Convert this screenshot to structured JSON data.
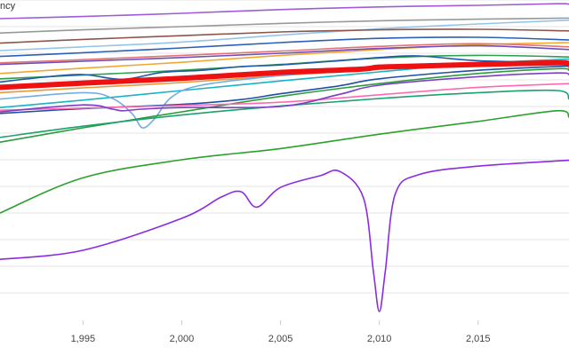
{
  "chart_data": {
    "type": "line",
    "ylabel": "ncy",
    "xlim": [
      1990.8,
      2019.6
    ],
    "ylim": [
      40,
      100
    ],
    "x_ticks": [
      1995,
      2000,
      2005,
      2010,
      2015
    ],
    "x_tick_labels": [
      "1,995",
      "2,000",
      "2,005",
      "2,010",
      "2,015"
    ],
    "grid": {
      "horizontal": true,
      "vertical": false
    },
    "legend": "none",
    "series": [
      {
        "color": "#ee1111",
        "highlight": true,
        "x": [
          1990.8,
          1995,
          2000,
          2005,
          2009,
          2010,
          2012,
          2015,
          2019,
          2019.6
        ],
        "y": [
          83.6,
          84.4,
          85.3,
          86.4,
          87.0,
          87.4,
          87.6,
          87.9,
          88.2,
          88.0
        ]
      },
      {
        "color": "#a05cd6",
        "x": [
          1990.8,
          1995,
          2000,
          2005,
          2010,
          2015,
          2019,
          2019.6
        ],
        "y": [
          96.5,
          96.9,
          97.5,
          98.2,
          98.7,
          99.0,
          99.3,
          99.2
        ]
      },
      {
        "color": "#999999",
        "x": [
          1990.8,
          1995,
          2000,
          2005,
          2010,
          2015,
          2019.6
        ],
        "y": [
          93.8,
          94.4,
          95.0,
          95.6,
          96.1,
          96.4,
          96.6
        ]
      },
      {
        "color": "#92c5e8",
        "x": [
          1990.8,
          1995,
          2000,
          2005,
          2010,
          2015,
          2019.6
        ],
        "y": [
          90.5,
          91.2,
          92.1,
          93.4,
          94.6,
          95.5,
          96.2
        ]
      },
      {
        "color": "#8c564b",
        "x": [
          1990.8,
          1995,
          2000,
          2005,
          2010,
          2015,
          2019.6
        ],
        "y": [
          91.9,
          92.6,
          93.3,
          94.0,
          94.4,
          94.5,
          94.2
        ]
      },
      {
        "color": "#2b5fb8",
        "x": [
          1990.8,
          1995,
          2000,
          2005,
          2010,
          2015,
          2019.6
        ],
        "y": [
          89.4,
          90.1,
          91.0,
          92.0,
          92.8,
          93.0,
          92.5
        ]
      },
      {
        "color": "#f0a830",
        "x": [
          1990.8,
          1995,
          2000,
          2005,
          2010,
          2015,
          2019.6
        ],
        "y": [
          86.2,
          87.2,
          88.3,
          89.6,
          90.7,
          91.6,
          92.0
        ]
      },
      {
        "color": "#e57373",
        "x": [
          1990.8,
          1995,
          2000,
          2005,
          2010,
          2015,
          2019.6
        ],
        "y": [
          88.2,
          88.8,
          89.6,
          90.4,
          91.3,
          91.8,
          91.2
        ]
      },
      {
        "color": "#6b4fbf",
        "x": [
          1990.8,
          1995,
          2000,
          2005,
          2010,
          2015,
          2019.6
        ],
        "y": [
          87.9,
          88.5,
          89.2,
          90.0,
          90.9,
          91.4,
          90.7
        ]
      },
      {
        "color": "#2e9e4f",
        "x": [
          1990.8,
          1995,
          2000,
          2005,
          2010,
          2015,
          2019.6
        ],
        "y": [
          85.2,
          85.9,
          86.8,
          87.9,
          89.1,
          89.6,
          89.3
        ]
      },
      {
        "color": "#1f5aa6",
        "x": [
          1990.8,
          1993,
          1995,
          1997,
          1999,
          2001,
          2003,
          2005,
          2008,
          2010,
          2012,
          2015,
          2019.6
        ],
        "y": [
          84.6,
          85.5,
          86.0,
          85.1,
          86.4,
          86.8,
          87.5,
          87.8,
          88.6,
          89.2,
          89.5,
          88.6,
          88.3
        ]
      },
      {
        "color": "#e69a3a",
        "x": [
          1990.8,
          1995,
          2000,
          2005,
          2010,
          2015,
          2019,
          2019.6
        ],
        "y": [
          82.6,
          83.5,
          84.5,
          85.8,
          87.0,
          88.0,
          88.3,
          87.1
        ]
      },
      {
        "color": "#17b4c4",
        "x": [
          1990.8,
          1995,
          2000,
          2005,
          2010,
          2015,
          2019.6
        ],
        "y": [
          79.8,
          81.2,
          83.0,
          84.8,
          86.5,
          88.1,
          88.9
        ]
      },
      {
        "color": "#74aee0",
        "x": [
          1990.8,
          1995,
          1996.5,
          1997.5,
          1998,
          1998.6,
          1999.5,
          2001,
          2005,
          2010,
          2015,
          2019.6
        ],
        "y": [
          81.4,
          82.6,
          81.5,
          78.6,
          76.0,
          77.6,
          81.8,
          84.0,
          85.8,
          87.2,
          88.0,
          88.4
        ]
      },
      {
        "color": "#1f4ea3",
        "x": [
          1990.8,
          1995,
          2000,
          2003,
          2005,
          2008,
          2010,
          2015,
          2019.6
        ],
        "y": [
          78.7,
          79.6,
          80.4,
          81.3,
          82.4,
          83.9,
          85.2,
          86.8,
          87.6
        ]
      },
      {
        "color": "#2a9d3a",
        "x": [
          1990.8,
          1995,
          2000,
          2005,
          2010,
          2015,
          2019,
          2019.6
        ],
        "y": [
          73.3,
          76.0,
          79.0,
          81.9,
          84.3,
          86.2,
          87.1,
          86.8
        ]
      },
      {
        "color": "#ff69b4",
        "x": [
          1990.8,
          1995,
          2000,
          2005,
          2010,
          2015,
          2019.6
        ],
        "y": [
          79.3,
          79.7,
          80.2,
          80.8,
          82.2,
          83.6,
          84.3
        ]
      },
      {
        "color": "#1ca06e",
        "x": [
          1990.8,
          1995,
          2000,
          2005,
          2010,
          2015,
          2019,
          2019.6
        ],
        "y": [
          74.2,
          76.3,
          78.4,
          80.1,
          81.5,
          82.6,
          83.0,
          81.4
        ]
      },
      {
        "color": "#7c3fc4",
        "x": [
          1990.8,
          1995,
          1996.5,
          1997,
          1998,
          2000,
          2005,
          2008,
          2010,
          2015,
          2019,
          2019.6
        ],
        "y": [
          79.0,
          80.3,
          79.5,
          79.2,
          79.5,
          79.8,
          80.0,
          82.3,
          84.0,
          85.6,
          86.3,
          86.0
        ]
      },
      {
        "color": "#8a2be2",
        "x": [
          1990.8,
          1995,
          2000,
          2002,
          2003,
          2003.8,
          2005,
          2007,
          2008,
          2009.2,
          2009.7,
          2010.0,
          2010.3,
          2010.8,
          2012,
          2015,
          2019.6
        ],
        "y": [
          51.3,
          53.0,
          59.0,
          63.0,
          64.0,
          61.1,
          64.8,
          67.0,
          67.8,
          62.8,
          49.0,
          41.5,
          49.0,
          63.5,
          67.2,
          68.8,
          69.9
        ]
      },
      {
        "color": "#2ca02c",
        "x": [
          1990.8,
          1995,
          2000,
          2005,
          2010,
          2015,
          2019,
          2019.6
        ],
        "y": [
          60.0,
          66.6,
          70.0,
          72.1,
          74.8,
          77.2,
          79.2,
          78.0
        ]
      }
    ]
  }
}
